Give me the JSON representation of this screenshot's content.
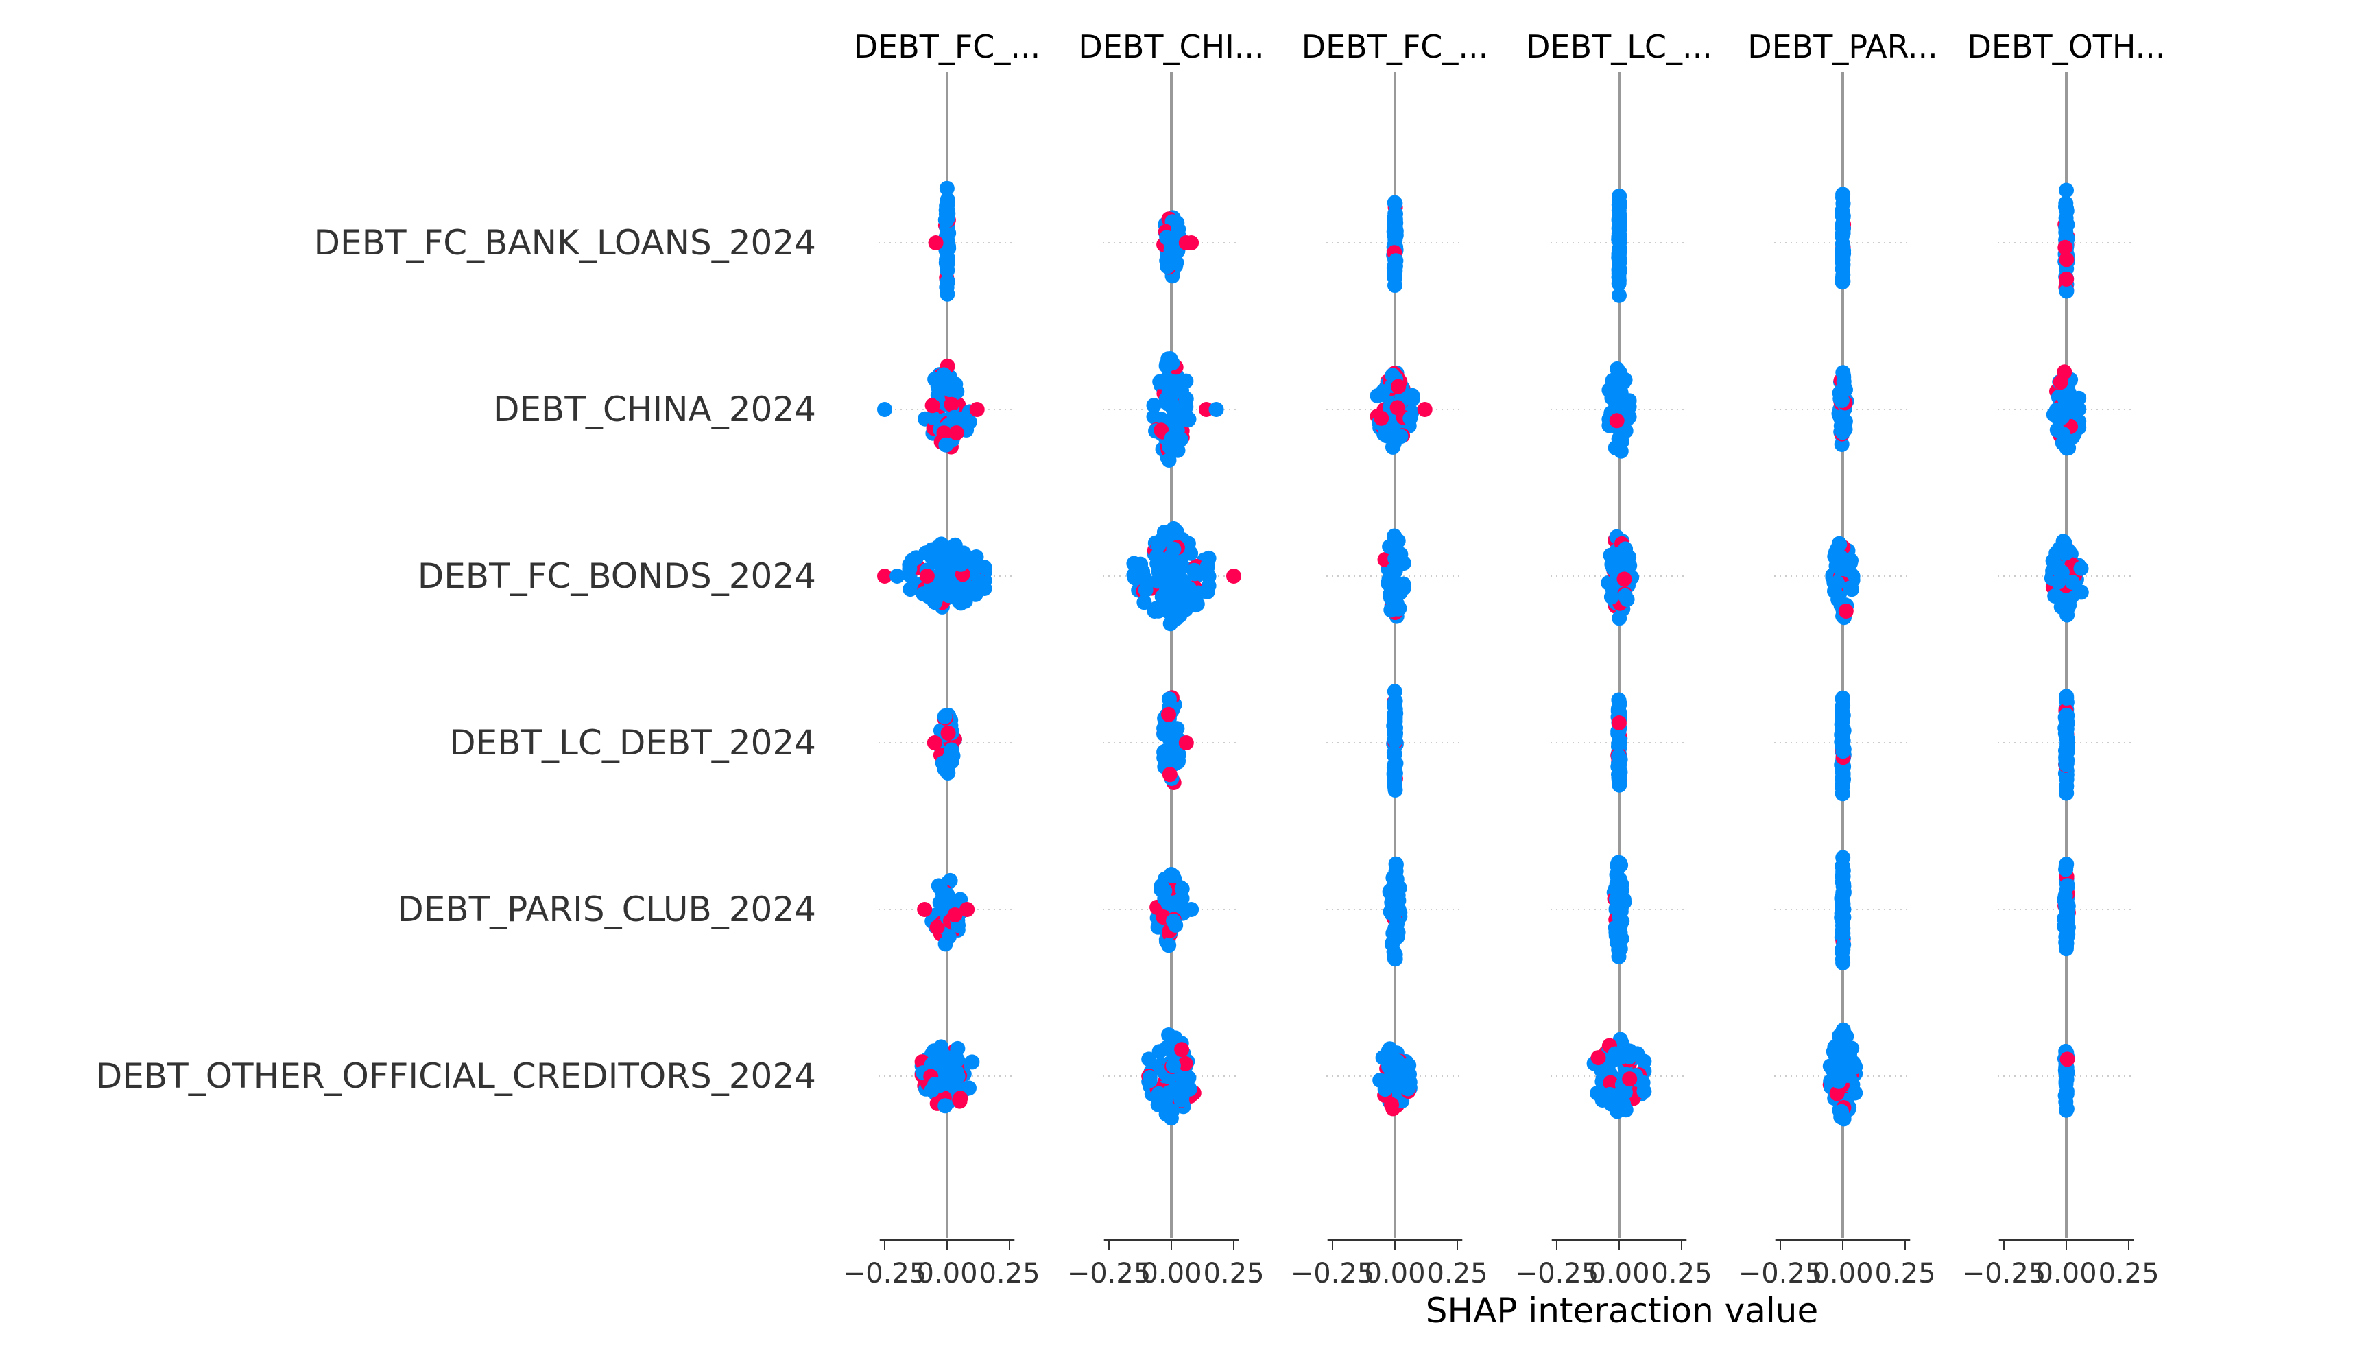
{
  "chart_data": {
    "type": "scatter",
    "subtype": "shap-interaction-beeswarm-grid",
    "xlabel": "SHAP interaction value",
    "features": [
      "DEBT_FC_BANK_LOANS_2024",
      "DEBT_CHINA_2024",
      "DEBT_FC_BONDS_2024",
      "DEBT_LC_DEBT_2024",
      "DEBT_PARIS_CLUB_2024",
      "DEBT_OTHER_OFFICIAL_CREDITORS_2024"
    ],
    "column_titles": [
      "DEBT_FC_...",
      "DEBT_CHI...",
      "DEBT_FC_...",
      "DEBT_LC_...",
      "DEBT_PAR...",
      "DEBT_OTH..."
    ],
    "x_ticks": [
      -0.25,
      0.0,
      0.25
    ],
    "x_tick_labels": [
      "−0.25",
      "0.00",
      "0.25"
    ],
    "xlim": [
      -0.27,
      0.27
    ],
    "grid": "horizontal-dotted",
    "colors": {
      "low": "#008bfb",
      "high": "#ff0052",
      "zero_line": "#999999",
      "grid": "#cccccc"
    },
    "cells": [
      [
        {
          "spread": 0.006,
          "height": 0.7,
          "count": 60,
          "right_tail": [],
          "left_tail": [
            -0.045
          ],
          "red_frac": 0.08
        },
        {
          "spread": 0.03,
          "height": 0.45,
          "count": 45,
          "right_tail": [
            0.06,
            0.08
          ],
          "left_tail": [],
          "red_frac": 0.15
        },
        {
          "spread": 0.005,
          "height": 0.6,
          "count": 50,
          "right_tail": [],
          "left_tail": [],
          "red_frac": 0.06
        },
        {
          "spread": 0.002,
          "height": 0.7,
          "count": 50,
          "right_tail": [],
          "left_tail": [],
          "red_frac": 0.0
        },
        {
          "spread": 0.003,
          "height": 0.7,
          "count": 50,
          "right_tail": [],
          "left_tail": [],
          "red_frac": 0.08
        },
        {
          "spread": 0.005,
          "height": 0.7,
          "count": 50,
          "right_tail": [],
          "left_tail": [],
          "red_frac": 0.1
        }
      ],
      [
        {
          "spread": 0.09,
          "height": 0.55,
          "count": 80,
          "right_tail": [
            0.12
          ],
          "left_tail": [
            -0.25
          ],
          "red_frac": 0.2
        },
        {
          "spread": 0.07,
          "height": 0.7,
          "count": 80,
          "right_tail": [
            0.14,
            0.18
          ],
          "left_tail": [],
          "red_frac": 0.2
        },
        {
          "spread": 0.07,
          "height": 0.5,
          "count": 70,
          "right_tail": [
            0.12
          ],
          "left_tail": [],
          "red_frac": 0.25
        },
        {
          "spread": 0.04,
          "height": 0.6,
          "count": 55,
          "right_tail": [],
          "left_tail": [],
          "red_frac": 0.12
        },
        {
          "spread": 0.015,
          "height": 0.5,
          "count": 45,
          "right_tail": [],
          "left_tail": [],
          "red_frac": 0.1
        },
        {
          "spread": 0.05,
          "height": 0.55,
          "count": 55,
          "right_tail": [],
          "left_tail": [],
          "red_frac": 0.12
        }
      ],
      [
        {
          "spread": 0.15,
          "height": 0.45,
          "count": 110,
          "right_tail": [],
          "left_tail": [
            -0.25,
            -0.2,
            -0.08
          ],
          "red_frac": 0.08
        },
        {
          "spread": 0.15,
          "height": 0.6,
          "count": 110,
          "right_tail": [
            0.25
          ],
          "left_tail": [],
          "red_frac": 0.1
        },
        {
          "spread": 0.04,
          "height": 0.55,
          "count": 45,
          "right_tail": [],
          "left_tail": [],
          "red_frac": 0.1
        },
        {
          "spread": 0.05,
          "height": 0.55,
          "count": 50,
          "right_tail": [],
          "left_tail": [],
          "red_frac": 0.15
        },
        {
          "spread": 0.04,
          "height": 0.55,
          "count": 50,
          "right_tail": [],
          "left_tail": [],
          "red_frac": 0.15
        },
        {
          "spread": 0.06,
          "height": 0.5,
          "count": 55,
          "right_tail": [],
          "left_tail": [],
          "red_frac": 0.2
        }
      ],
      [
        {
          "spread": 0.03,
          "height": 0.4,
          "count": 45,
          "right_tail": [],
          "left_tail": [
            -0.05
          ],
          "red_frac": 0.2
        },
        {
          "spread": 0.03,
          "height": 0.65,
          "count": 55,
          "right_tail": [
            0.06
          ],
          "left_tail": [],
          "red_frac": 0.15
        },
        {
          "spread": 0.005,
          "height": 0.7,
          "count": 50,
          "right_tail": [],
          "left_tail": [],
          "red_frac": 0.06
        },
        {
          "spread": 0.005,
          "height": 0.7,
          "count": 55,
          "right_tail": [],
          "left_tail": [],
          "red_frac": 0.08
        },
        {
          "spread": 0.005,
          "height": 0.7,
          "count": 55,
          "right_tail": [],
          "left_tail": [],
          "red_frac": 0.06
        },
        {
          "spread": 0.005,
          "height": 0.7,
          "count": 55,
          "right_tail": [],
          "left_tail": [],
          "red_frac": 0.05
        }
      ],
      [
        {
          "spread": 0.06,
          "height": 0.45,
          "count": 45,
          "right_tail": [
            0.08
          ],
          "left_tail": [
            -0.09
          ],
          "red_frac": 0.2
        },
        {
          "spread": 0.06,
          "height": 0.5,
          "count": 55,
          "right_tail": [
            0.08
          ],
          "left_tail": [],
          "red_frac": 0.2
        },
        {
          "spread": 0.02,
          "height": 0.65,
          "count": 50,
          "right_tail": [],
          "left_tail": [],
          "red_frac": 0.1
        },
        {
          "spread": 0.02,
          "height": 0.7,
          "count": 55,
          "right_tail": [],
          "left_tail": [],
          "red_frac": 0.06
        },
        {
          "spread": 0.005,
          "height": 0.7,
          "count": 55,
          "right_tail": [],
          "left_tail": [],
          "red_frac": 0.05
        },
        {
          "spread": 0.008,
          "height": 0.6,
          "count": 50,
          "right_tail": [],
          "left_tail": [],
          "red_frac": 0.08
        }
      ],
      [
        {
          "spread": 0.1,
          "height": 0.45,
          "count": 80,
          "right_tail": [],
          "left_tail": [],
          "red_frac": 0.2
        },
        {
          "spread": 0.09,
          "height": 0.55,
          "count": 80,
          "right_tail": [],
          "left_tail": [],
          "red_frac": 0.15
        },
        {
          "spread": 0.06,
          "height": 0.45,
          "count": 60,
          "right_tail": [],
          "left_tail": [],
          "red_frac": 0.15
        },
        {
          "spread": 0.1,
          "height": 0.5,
          "count": 80,
          "right_tail": [],
          "left_tail": [],
          "red_frac": 0.2
        },
        {
          "spread": 0.05,
          "height": 0.6,
          "count": 75,
          "right_tail": [],
          "left_tail": [],
          "red_frac": 0.1
        },
        {
          "spread": 0.006,
          "height": 0.55,
          "count": 25,
          "right_tail": [],
          "left_tail": [],
          "red_frac": 0.08
        }
      ]
    ]
  }
}
